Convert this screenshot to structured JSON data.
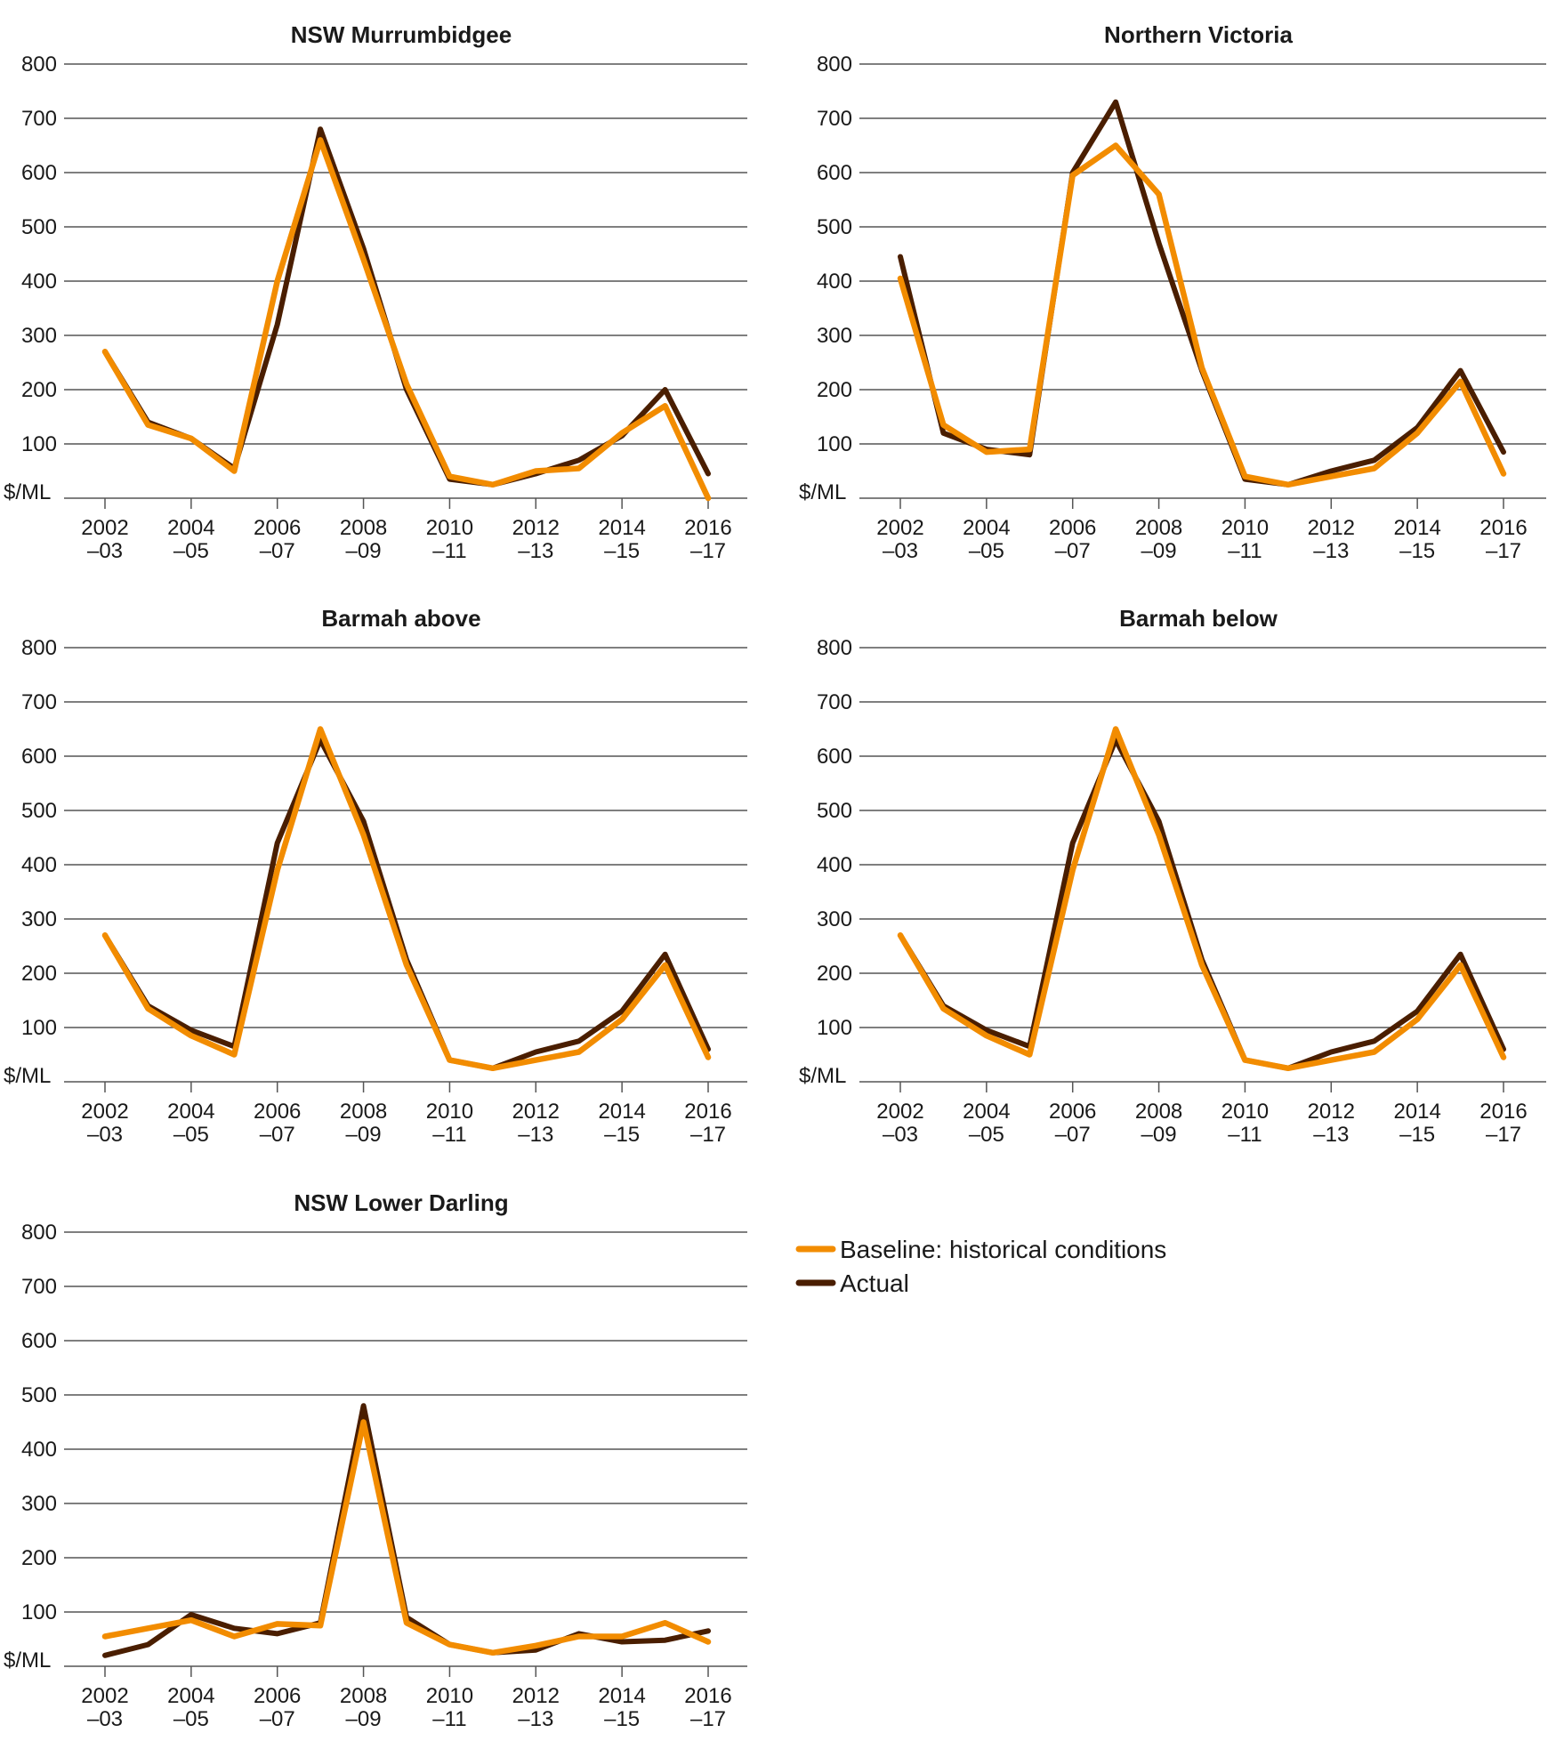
{
  "legend": [
    {
      "label": "Baseline: historical conditions",
      "color": "#f28c00"
    },
    {
      "label": "Actual",
      "color": "#4a1e00"
    }
  ],
  "chart_data": [
    {
      "type": "line",
      "title": "NSW Murrumbidgee",
      "ylabel": "$/ML",
      "ylim": [
        0,
        800
      ],
      "yticks": [
        100,
        200,
        300,
        400,
        500,
        600,
        700,
        800
      ],
      "categories": [
        "2002–03",
        "2003–04",
        "2004–05",
        "2005–06",
        "2006–07",
        "2007–08",
        "2008–09",
        "2009–10",
        "2010–11",
        "2011–12",
        "2012–13",
        "2013–14",
        "2014–15",
        "2015–16",
        "2016–17"
      ],
      "xtick_labels": [
        [
          "2002",
          "–03"
        ],
        [
          "2004",
          "–05"
        ],
        [
          "2006",
          "–07"
        ],
        [
          "2008",
          "–09"
        ],
        [
          "2010",
          "–11"
        ],
        [
          "2012",
          "–13"
        ],
        [
          "2014",
          "–15"
        ],
        [
          "2016",
          "–17"
        ]
      ],
      "series": [
        {
          "name": "Actual",
          "values": [
            270,
            140,
            110,
            55,
            320,
            680,
            460,
            200,
            35,
            25,
            45,
            70,
            115,
            200,
            45
          ]
        },
        {
          "name": "Baseline: historical conditions",
          "values": [
            270,
            135,
            110,
            50,
            400,
            660,
            440,
            210,
            40,
            25,
            50,
            55,
            120,
            170,
            0
          ]
        }
      ]
    },
    {
      "type": "line",
      "title": "Northern Victoria",
      "ylabel": "$/ML",
      "ylim": [
        0,
        800
      ],
      "yticks": [
        100,
        200,
        300,
        400,
        500,
        600,
        700,
        800
      ],
      "categories": [
        "2002–03",
        "2003–04",
        "2004–05",
        "2005–06",
        "2006–07",
        "2007–08",
        "2008–09",
        "2009–10",
        "2010–11",
        "2011–12",
        "2012–13",
        "2013–14",
        "2014–15",
        "2015–16",
        "2016–17"
      ],
      "xtick_labels": [
        [
          "2002",
          "–03"
        ],
        [
          "2004",
          "–05"
        ],
        [
          "2006",
          "–07"
        ],
        [
          "2008",
          "–09"
        ],
        [
          "2010",
          "–11"
        ],
        [
          "2012",
          "–13"
        ],
        [
          "2014",
          "–15"
        ],
        [
          "2016",
          "–17"
        ]
      ],
      "series": [
        {
          "name": "Actual",
          "values": [
            445,
            120,
            90,
            80,
            600,
            730,
            470,
            235,
            35,
            25,
            50,
            70,
            130,
            235,
            85
          ]
        },
        {
          "name": "Baseline: historical conditions",
          "values": [
            405,
            135,
            85,
            90,
            595,
            650,
            560,
            240,
            40,
            25,
            40,
            55,
            120,
            215,
            45
          ]
        }
      ]
    },
    {
      "type": "line",
      "title": "Barmah above",
      "ylabel": "$/ML",
      "ylim": [
        0,
        800
      ],
      "yticks": [
        100,
        200,
        300,
        400,
        500,
        600,
        700,
        800
      ],
      "categories": [
        "2002–03",
        "2003–04",
        "2004–05",
        "2005–06",
        "2006–07",
        "2007–08",
        "2008–09",
        "2009–10",
        "2010–11",
        "2011–12",
        "2012–13",
        "2013–14",
        "2014–15",
        "2015–16",
        "2016–17"
      ],
      "xtick_labels": [
        [
          "2002",
          "–03"
        ],
        [
          "2004",
          "–05"
        ],
        [
          "2006",
          "–07"
        ],
        [
          "2008",
          "–09"
        ],
        [
          "2010",
          "–11"
        ],
        [
          "2012",
          "–13"
        ],
        [
          "2014",
          "–15"
        ],
        [
          "2016",
          "–17"
        ]
      ],
      "series": [
        {
          "name": "Actual",
          "values": [
            270,
            140,
            95,
            65,
            440,
            630,
            480,
            225,
            40,
            25,
            55,
            75,
            130,
            235,
            60
          ]
        },
        {
          "name": "Baseline: historical conditions",
          "values": [
            270,
            135,
            85,
            50,
            390,
            650,
            455,
            215,
            40,
            25,
            40,
            55,
            115,
            215,
            45
          ]
        }
      ]
    },
    {
      "type": "line",
      "title": "Barmah below",
      "ylabel": "$/ML",
      "ylim": [
        0,
        800
      ],
      "yticks": [
        100,
        200,
        300,
        400,
        500,
        600,
        700,
        800
      ],
      "categories": [
        "2002–03",
        "2003–04",
        "2004–05",
        "2005–06",
        "2006–07",
        "2007–08",
        "2008–09",
        "2009–10",
        "2010–11",
        "2011–12",
        "2012–13",
        "2013–14",
        "2014–15",
        "2015–16",
        "2016–17"
      ],
      "xtick_labels": [
        [
          "2002",
          "–03"
        ],
        [
          "2004",
          "–05"
        ],
        [
          "2006",
          "–07"
        ],
        [
          "2008",
          "–09"
        ],
        [
          "2010",
          "–11"
        ],
        [
          "2012",
          "–13"
        ],
        [
          "2014",
          "–15"
        ],
        [
          "2016",
          "–17"
        ]
      ],
      "series": [
        {
          "name": "Actual",
          "values": [
            270,
            140,
            95,
            65,
            440,
            630,
            480,
            225,
            40,
            25,
            55,
            75,
            130,
            235,
            60
          ]
        },
        {
          "name": "Baseline: historical conditions",
          "values": [
            270,
            135,
            85,
            50,
            390,
            650,
            455,
            215,
            40,
            25,
            40,
            55,
            115,
            215,
            45
          ]
        }
      ]
    },
    {
      "type": "line",
      "title": "NSW Lower Darling",
      "ylabel": "$/ML",
      "ylim": [
        0,
        800
      ],
      "yticks": [
        100,
        200,
        300,
        400,
        500,
        600,
        700,
        800
      ],
      "categories": [
        "2002–03",
        "2003–04",
        "2004–05",
        "2005–06",
        "2006–07",
        "2007–08",
        "2008–09",
        "2009–10",
        "2010–11",
        "2011–12",
        "2012–13",
        "2013–14",
        "2014–15",
        "2015–16",
        "2016–17"
      ],
      "xtick_labels": [
        [
          "2002",
          "–03"
        ],
        [
          "2004",
          "–05"
        ],
        [
          "2006",
          "–07"
        ],
        [
          "2008",
          "–09"
        ],
        [
          "2010",
          "–11"
        ],
        [
          "2012",
          "–13"
        ],
        [
          "2014",
          "–15"
        ],
        [
          "2016",
          "–17"
        ]
      ],
      "series": [
        {
          "name": "Actual",
          "values": [
            20,
            40,
            95,
            70,
            60,
            80,
            480,
            90,
            40,
            25,
            30,
            60,
            45,
            48,
            65
          ]
        },
        {
          "name": "Baseline: historical conditions",
          "values": [
            55,
            70,
            85,
            55,
            78,
            75,
            450,
            80,
            40,
            25,
            38,
            55,
            55,
            80,
            45
          ]
        }
      ]
    }
  ]
}
